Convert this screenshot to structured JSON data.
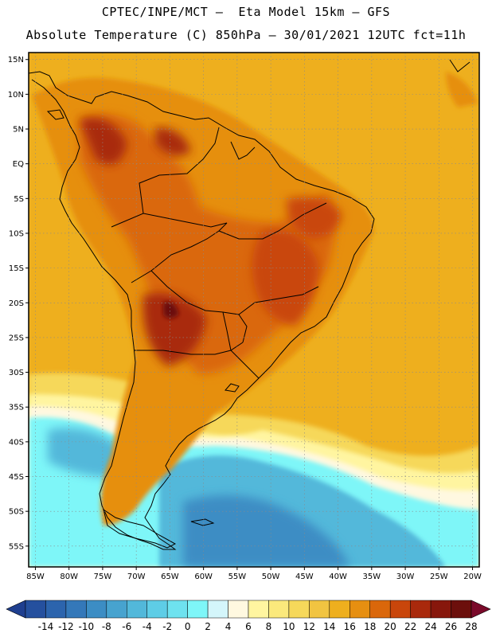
{
  "header": {
    "line1": "CPTEC/INPE/MCT –  Eta Model 15km – GFS",
    "line2": "Absolute Temperature (C) 850hPa – 30/01/2021 12UTC fct=11h"
  },
  "map": {
    "lon_range": [
      -86,
      -19
    ],
    "lat_range": [
      -58,
      16
    ],
    "lat_ticks": [
      {
        "value": 15,
        "label": "15N"
      },
      {
        "value": 10,
        "label": "10N"
      },
      {
        "value": 5,
        "label": "5N"
      },
      {
        "value": 0,
        "label": "EQ"
      },
      {
        "value": -5,
        "label": "5S"
      },
      {
        "value": -10,
        "label": "10S"
      },
      {
        "value": -15,
        "label": "15S"
      },
      {
        "value": -20,
        "label": "20S"
      },
      {
        "value": -25,
        "label": "25S"
      },
      {
        "value": -30,
        "label": "30S"
      },
      {
        "value": -35,
        "label": "35S"
      },
      {
        "value": -40,
        "label": "40S"
      },
      {
        "value": -45,
        "label": "45S"
      },
      {
        "value": -50,
        "label": "50S"
      },
      {
        "value": -55,
        "label": "55S"
      }
    ],
    "lon_ticks": [
      {
        "value": -85,
        "label": "85W"
      },
      {
        "value": -80,
        "label": "80W"
      },
      {
        "value": -75,
        "label": "75W"
      },
      {
        "value": -70,
        "label": "70W"
      },
      {
        "value": -65,
        "label": "65W"
      },
      {
        "value": -60,
        "label": "60W"
      },
      {
        "value": -55,
        "label": "55W"
      },
      {
        "value": -50,
        "label": "50W"
      },
      {
        "value": -45,
        "label": "45W"
      },
      {
        "value": -40,
        "label": "40W"
      },
      {
        "value": -35,
        "label": "35W"
      },
      {
        "value": -30,
        "label": "30W"
      },
      {
        "value": -25,
        "label": "25W"
      },
      {
        "value": -20,
        "label": "20W"
      }
    ],
    "grid": true
  },
  "colorbar": {
    "levels": [
      "-14",
      "-12",
      "-10",
      "-8",
      "-6",
      "-4",
      "-2",
      "0",
      "2",
      "4",
      "6",
      "8",
      "10",
      "12",
      "14",
      "16",
      "18",
      "20",
      "22",
      "24",
      "26",
      "28"
    ],
    "colors": [
      "#1f3f8f",
      "#25509e",
      "#2c64ad",
      "#3478b9",
      "#3c8dc4",
      "#47a3cf",
      "#52b8da",
      "#5ecde6",
      "#6ee2ef",
      "#7ef6f8",
      "#d4f6fb",
      "#fff8e0",
      "#fff5a0",
      "#fbe97c",
      "#f6d85a",
      "#f1c441",
      "#eeaf1e",
      "#e68f11",
      "#da670b",
      "#c9460b",
      "#a9290c",
      "#87170c",
      "#6c0f0c",
      "#7a0a2a"
    ]
  }
}
